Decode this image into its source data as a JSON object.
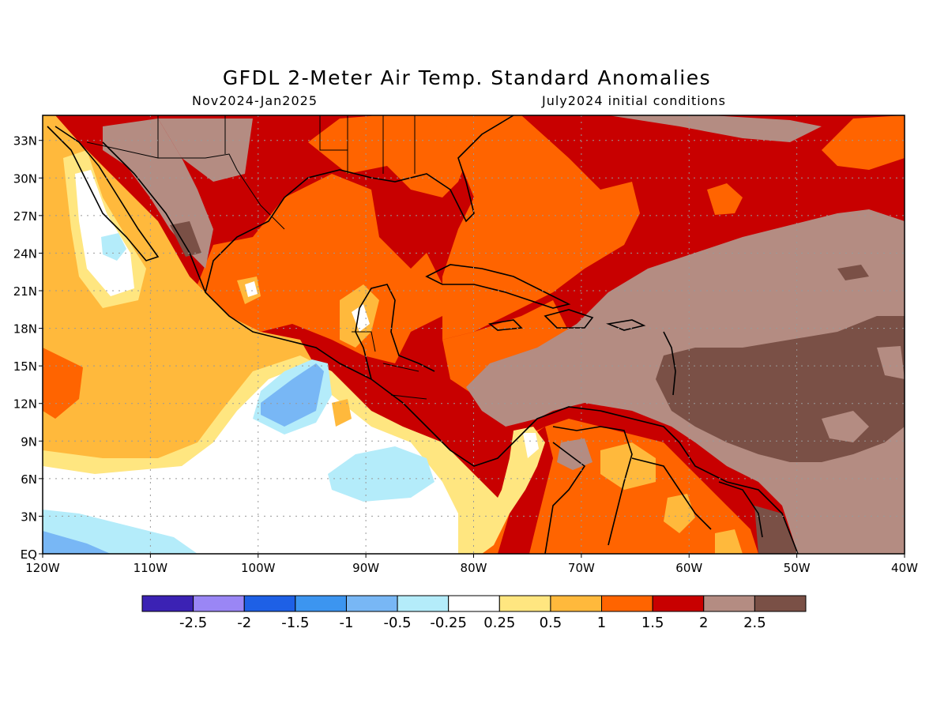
{
  "header": {
    "title": "GFDL 2-Meter Air Temp. Standard Anomalies",
    "period": "Nov2024-Jan2025",
    "initial_conditions": "July2024 initial conditions"
  },
  "map": {
    "lon_range": [
      -120,
      -40
    ],
    "lat_range": [
      0,
      35
    ],
    "lat_labels": [
      {
        "value": 33,
        "label": "33N"
      },
      {
        "value": 30,
        "label": "30N"
      },
      {
        "value": 27,
        "label": "27N"
      },
      {
        "value": 24,
        "label": "24N"
      },
      {
        "value": 21,
        "label": "21N"
      },
      {
        "value": 18,
        "label": "18N"
      },
      {
        "value": 15,
        "label": "15N"
      },
      {
        "value": 12,
        "label": "12N"
      },
      {
        "value": 9,
        "label": "9N"
      },
      {
        "value": 6,
        "label": "6N"
      },
      {
        "value": 3,
        "label": "3N"
      },
      {
        "value": 0,
        "label": "EQ"
      }
    ],
    "lon_labels": [
      {
        "value": -120,
        "label": "120W"
      },
      {
        "value": -110,
        "label": "110W"
      },
      {
        "value": -100,
        "label": "100W"
      },
      {
        "value": -90,
        "label": "90W"
      },
      {
        "value": -80,
        "label": "80W"
      },
      {
        "value": -70,
        "label": "70W"
      },
      {
        "value": -60,
        "label": "60W"
      },
      {
        "value": -50,
        "label": "50W"
      },
      {
        "value": -40,
        "label": "40W"
      }
    ],
    "gridlines": "dotted"
  },
  "legend": {
    "colors": [
      "#3b22b4",
      "#9a86f5",
      "#1e60e6",
      "#3c95f0",
      "#78b7f5",
      "#b4ecfa",
      "#ffffff",
      "#ffe680",
      "#ffb93c",
      "#ff6400",
      "#c80000",
      "#b48c82",
      "#7a5046"
    ],
    "labels": [
      "-2.5",
      "-2",
      "-1.5",
      "-1",
      "-0.5",
      "-0.25",
      "0.25",
      "0.5",
      "1",
      "1.5",
      "2",
      "2.5"
    ]
  }
}
